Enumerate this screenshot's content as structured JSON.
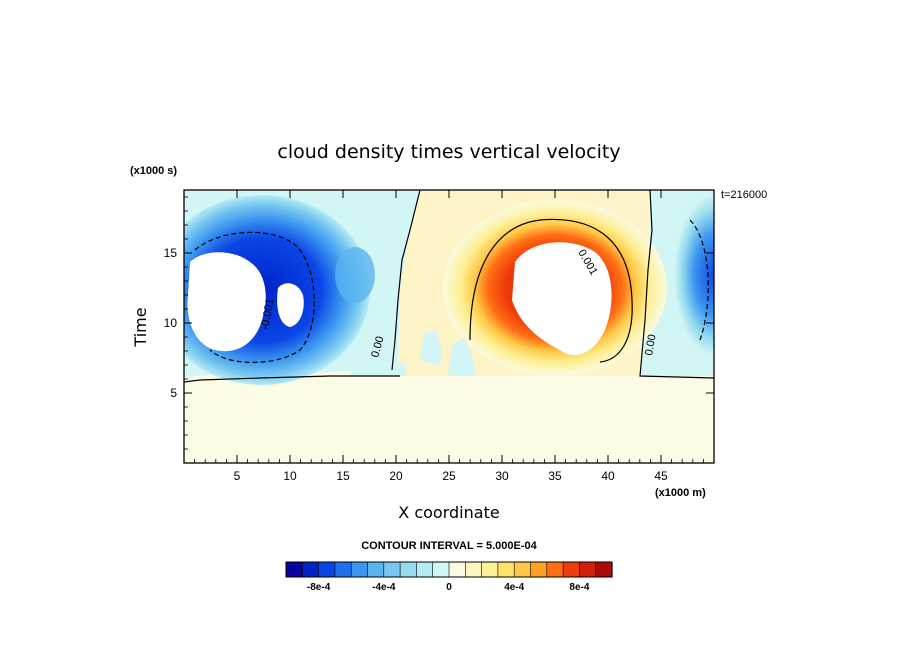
{
  "chart_data": {
    "type": "contour",
    "title": "cloud density times vertical velocity",
    "xlabel": "X coordinate",
    "ylabel": "Time",
    "x_units": "(x1000 m)",
    "y_units": "(x1000 s)",
    "time_label": "t=216000",
    "xlim": [
      0,
      50
    ],
    "ylim": [
      0,
      19.5
    ],
    "x_ticks": [
      5,
      10,
      15,
      20,
      25,
      30,
      35,
      40,
      45
    ],
    "y_ticks": [
      5,
      10,
      15
    ],
    "contour_interval_text": "CONTOUR INTERVAL = 5.000E-04",
    "contour_labels": [
      "-0.001",
      "0.00",
      "0.001",
      "0.00"
    ],
    "colorbar": {
      "ticks": [
        "-8e-4",
        "-4e-4",
        "0",
        "4e-4",
        "8e-4"
      ],
      "tick_values": [
        -0.0008,
        -0.0004,
        0,
        0.0004,
        0.0008
      ],
      "levels": [
        -0.001,
        -0.0009,
        -0.0008,
        -0.0007,
        -0.0006,
        -0.0005,
        -0.0004,
        -0.0003,
        -0.0002,
        -0.0001,
        0,
        0.0001,
        0.0002,
        0.0003,
        0.0004,
        0.0005,
        0.0006,
        0.0007,
        0.0008,
        0.0009,
        0.001
      ],
      "colors": [
        "#0a00a0",
        "#0022c8",
        "#0a46e6",
        "#1e6ef0",
        "#3c96f0",
        "#5ab4f0",
        "#78c8f0",
        "#96dcf0",
        "#b4ebf5",
        "#d2f5f5",
        "#fafae1",
        "#fff5c3",
        "#fff096",
        "#ffe16e",
        "#ffc846",
        "#ffa01e",
        "#ff6e14",
        "#f03c0a",
        "#d21e0a",
        "#aa0a0a"
      ]
    },
    "regions": [
      {
        "name": "negative-cell-left",
        "x": [
          0,
          19
        ],
        "y": [
          6,
          19.5
        ],
        "min": -0.001
      },
      {
        "name": "negative-cell-right",
        "x": [
          43,
          50
        ],
        "y": [
          6,
          19.5
        ],
        "min": -0.0008
      },
      {
        "name": "positive-cell-center",
        "x": [
          20,
          44
        ],
        "y": [
          7,
          19.5
        ],
        "max": 0.001
      },
      {
        "name": "uniform-low-band",
        "x": [
          0,
          50
        ],
        "y": [
          0,
          6
        ],
        "value": 5e-05
      }
    ]
  }
}
